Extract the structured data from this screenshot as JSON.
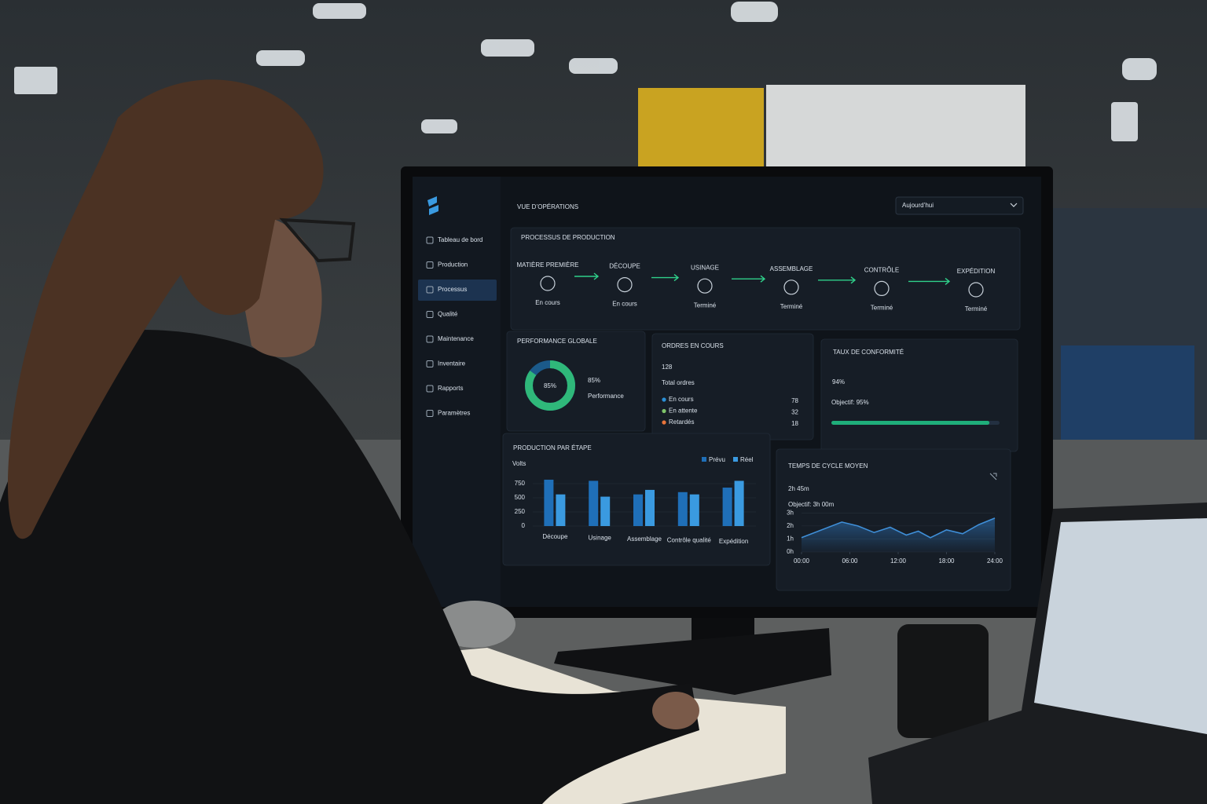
{
  "sidebar": {
    "items": [
      "Tableau de bord",
      "Production",
      "Processus",
      "Qualité",
      "Maintenance",
      "Inventaire",
      "Rapports",
      "Paramètres"
    ]
  },
  "header": {
    "title": "VUE D’OPÉRATIONS",
    "dropdown": "Aujourd’hui"
  },
  "process": {
    "title": "PROCESSUS DE PRODUCTION",
    "steps": [
      {
        "label": "MATIÈRE PREMIÈRE",
        "status": "En cours"
      },
      {
        "label": "DÉCOUPE",
        "status": "En cours"
      },
      {
        "label": "USINAGE",
        "status": "Terminé"
      },
      {
        "label": "ASSEMBLAGE",
        "status": "Terminé"
      },
      {
        "label": "CONTRÔLE",
        "status": "Terminé"
      },
      {
        "label": "EXPÉDITION",
        "status": "Terminé"
      }
    ]
  },
  "orders": {
    "title": "ORDRES EN COURS",
    "total": 128,
    "total_label": "Total ordres",
    "rows": [
      {
        "label": "En cours",
        "value": 78,
        "color": "#2a8fd6"
      },
      {
        "label": "En attente",
        "value": 32,
        "color": "#7fc46a"
      },
      {
        "label": "Retardés",
        "value": 18,
        "color": "#e8743a"
      }
    ]
  },
  "chart_data": [
    {
      "type": "donut",
      "title": "PERFORMANCE GLOBALE",
      "values": [
        85
      ],
      "value_labels": [
        "85%"
      ],
      "caption": "Performance",
      "ylim": [
        0,
        100
      ],
      "color": "#2fb87a"
    },
    {
      "type": "progress",
      "title": "TAUX DE CONFORMITÉ",
      "values": [
        94
      ],
      "value_labels": [
        "94%"
      ],
      "target": "Objectif: 95%",
      "xlim": [
        0,
        100
      ],
      "color": "#1fae7a"
    },
    {
      "type": "bar",
      "title": "PRODUCTION PAR ÉTAPE",
      "ylabel": "Volts",
      "categories": [
        "Découpe",
        "Usinage",
        "Assemblage",
        "Contrôle qualité",
        "Expédition"
      ],
      "series": [
        {
          "name": "Prévu",
          "color": "#1f6fb8",
          "values": [
            820,
            800,
            560,
            600,
            680
          ]
        },
        {
          "name": "Réel",
          "color": "#3a9ae0",
          "values": [
            560,
            520,
            640,
            560,
            800
          ]
        }
      ],
      "ylim": [
        0,
        1000
      ],
      "yticks": [
        0,
        250,
        500,
        750
      ],
      "grid": true
    },
    {
      "type": "line",
      "title": "TEMPS DE CYCLE MOYEN",
      "headline": "2h 45m",
      "target": "Objectif: 3h 00m",
      "x": [
        0,
        5,
        7,
        9,
        11,
        13,
        14.5,
        16,
        18,
        20,
        22,
        24
      ],
      "values": [
        1.1,
        2.3,
        2.0,
        1.5,
        1.9,
        1.3,
        1.6,
        1.1,
        1.7,
        1.4,
        2.1,
        2.6
      ],
      "color": "#3f8fd8",
      "xlim": [
        0,
        24
      ],
      "ylim": [
        0,
        3.2
      ],
      "xticks": [
        {
          "value": 0,
          "label": "00:00"
        },
        {
          "value": 6,
          "label": "06:00"
        },
        {
          "value": 12,
          "label": "12:00"
        },
        {
          "value": 18,
          "label": "18:00"
        },
        {
          "value": 24,
          "label": "24:00"
        }
      ],
      "yticks": [
        {
          "value": 0,
          "label": "0h"
        },
        {
          "value": 1,
          "label": "1h"
        },
        {
          "value": 2,
          "label": "2h"
        },
        {
          "value": 3,
          "label": "3h"
        }
      ]
    }
  ]
}
